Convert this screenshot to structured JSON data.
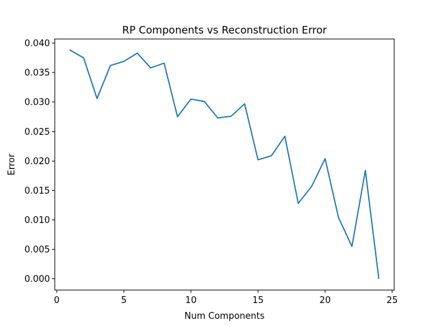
{
  "chart_data": {
    "type": "line",
    "title": "RP Components vs Reconstruction Error",
    "xlabel": "Num Components",
    "ylabel": "Error",
    "xlim": [
      -0.15,
      25.15
    ],
    "ylim": [
      -0.0019,
      0.0407
    ],
    "xticks": [
      0,
      5,
      10,
      15,
      20,
      25
    ],
    "xtick_labels": [
      "0",
      "5",
      "10",
      "15",
      "20",
      "25"
    ],
    "yticks": [
      0.0,
      0.005,
      0.01,
      0.015,
      0.02,
      0.025,
      0.03,
      0.035,
      0.04
    ],
    "ytick_labels": [
      "0.000",
      "0.005",
      "0.010",
      "0.015",
      "0.020",
      "0.025",
      "0.030",
      "0.035",
      "0.040"
    ],
    "grid": false,
    "series": [
      {
        "color": "#1f77b4",
        "x": [
          1,
          2,
          3,
          4,
          5,
          6,
          7,
          8,
          9,
          10,
          11,
          12,
          13,
          14,
          15,
          16,
          17,
          18,
          19,
          20,
          21,
          22,
          23,
          24
        ],
        "y": [
          0.0388,
          0.0375,
          0.0306,
          0.0362,
          0.0369,
          0.0383,
          0.0358,
          0.0366,
          0.0275,
          0.0305,
          0.0301,
          0.0273,
          0.0276,
          0.0297,
          0.0202,
          0.0209,
          0.0242,
          0.0128,
          0.0157,
          0.0204,
          0.0104,
          0.0055,
          0.0184,
          0.0001
        ]
      }
    ]
  }
}
